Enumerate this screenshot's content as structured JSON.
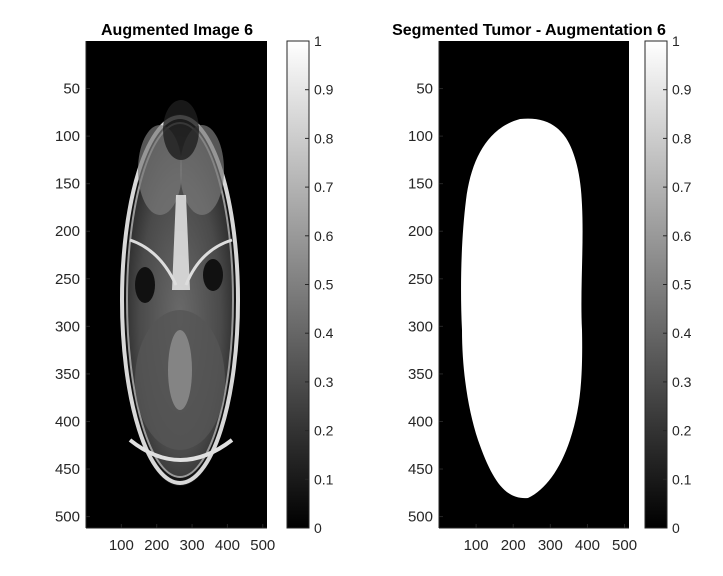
{
  "figure": {
    "left_panel": {
      "title": "Augmented Image 6",
      "y_ticks": [
        "50",
        "100",
        "150",
        "200",
        "250",
        "300",
        "350",
        "400",
        "450",
        "500"
      ],
      "x_ticks": [
        "100",
        "200",
        "300",
        "400",
        "500"
      ],
      "colorbar_ticks": [
        "0",
        "0.1",
        "0.2",
        "0.3",
        "0.4",
        "0.5",
        "0.6",
        "0.7",
        "0.8",
        "0.9",
        "1"
      ]
    },
    "right_panel": {
      "title": "Segmented Tumor - Augmentation 6",
      "y_ticks": [
        "50",
        "100",
        "150",
        "200",
        "250",
        "300",
        "350",
        "400",
        "450",
        "500"
      ],
      "x_ticks": [
        "100",
        "200",
        "300",
        "400",
        "500"
      ],
      "colorbar_ticks": [
        "0",
        "0.1",
        "0.2",
        "0.3",
        "0.4",
        "0.5",
        "0.6",
        "0.7",
        "0.8",
        "0.9",
        "1"
      ]
    },
    "colormap": "gray",
    "colors": {
      "background": "#ffffff",
      "axis": "#262626",
      "mask": "#ffffff",
      "image_bg": "#000000"
    }
  }
}
